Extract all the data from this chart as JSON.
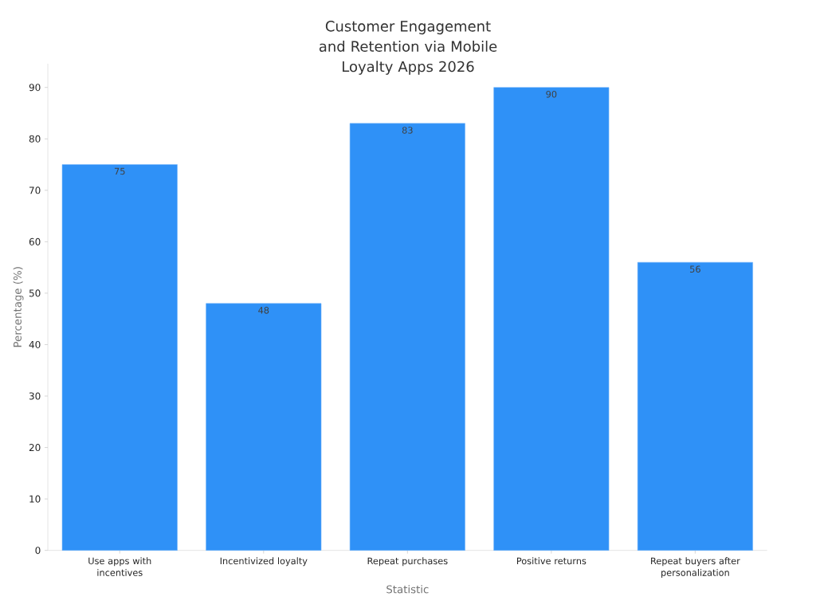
{
  "chart_data": {
    "type": "bar",
    "title": "Customer Engagement and Retention via Mobile Loyalty Apps 2026",
    "xlabel": "Statistic",
    "ylabel": "Percentage (%)",
    "categories": [
      "Use apps with incentives",
      "Incentivized loyalty",
      "Repeat purchases",
      "Positive returns",
      "Repeat buyers after personalization"
    ],
    "values": [
      75,
      48,
      83,
      90,
      56
    ],
    "color": "#2f91f7",
    "ylim": [
      0,
      94.6
    ],
    "yticks": [
      0,
      10,
      20,
      30,
      40,
      50,
      60,
      70,
      80,
      90
    ],
    "data_labels": true,
    "grid": false
  }
}
